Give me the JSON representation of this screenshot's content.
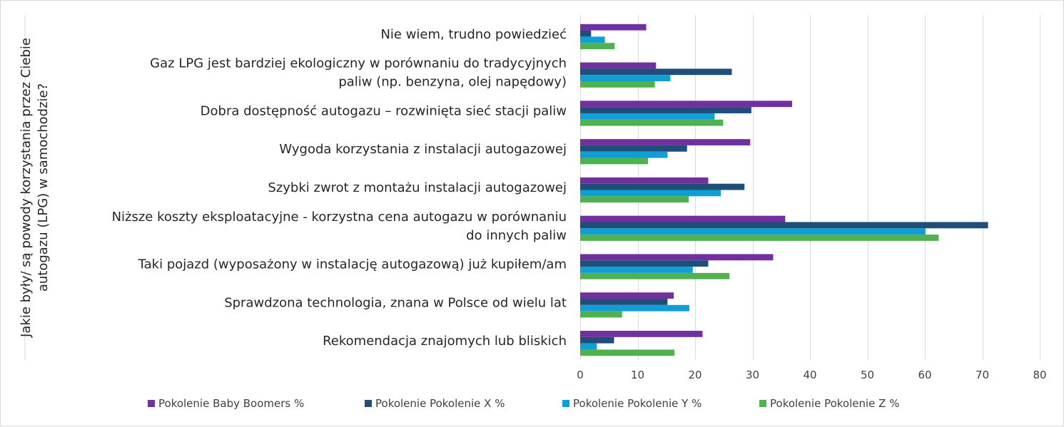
{
  "chart_data": {
    "type": "bar",
    "orientation": "horizontal",
    "ylabel": "Jakie były/ są powody korzystania przez Ciebie autogazu (LPG) w samochodzie?",
    "ylabel_lines": [
      "Jakie były/ są powody korzystania przez Ciebie",
      "autogazu (LPG) w samochodzie?"
    ],
    "xlim": [
      0,
      80
    ],
    "x_ticks": [
      0,
      10,
      20,
      30,
      40,
      50,
      60,
      70,
      80
    ],
    "grid": "vertical",
    "legend_position": "bottom",
    "categories": [
      "Nie wiem, trudno powiedzieć",
      "Gaz LPG jest bardziej ekologiczny w porównaniu do tradycyjnych paliw (np. benzyna, olej napędowy)",
      "Dobra dostępność autogazu – rozwinięta sieć stacji paliw",
      "Wygoda korzystania z instalacji autogazowej",
      "Szybki zwrot z montażu instalacji autogazowej",
      "Niższe koszty eksploatacyjne - korzystna cena autogazu w porównaniu do innych paliw",
      "Taki pojazd (wyposażony w instalację autogazową) już kupiłem/am",
      "Sprawdzona technologia, znana w Polsce od wielu lat",
      "Rekomendacja znajomych lub bliskich"
    ],
    "category_lines": [
      [
        "Nie wiem, trudno powiedzieć"
      ],
      [
        "Gaz LPG jest bardziej ekologiczny w porównaniu do tradycyjnych",
        "paliw (np. benzyna, olej napędowy)"
      ],
      [
        "Dobra dostępność autogazu – rozwinięta sieć stacji paliw"
      ],
      [
        "Wygoda korzystania z instalacji autogazowej"
      ],
      [
        "Szybki zwrot z montażu instalacji autogazowej"
      ],
      [
        "Niższe koszty eksploatacyjne - korzystna cena autogazu w porównaniu",
        "do innych paliw"
      ],
      [
        "Taki pojazd (wyposażony w instalację autogazową) już kupiłem/am"
      ],
      [
        "Sprawdzona technologia, znana w Polsce od wielu lat"
      ],
      [
        "Rekomendacja znajomych lub bliskich"
      ]
    ],
    "series": [
      {
        "name": "Pokolenie Baby Boomers %",
        "color": "#7030a0",
        "values": [
          11.5,
          13.2,
          36.9,
          29.6,
          22.3,
          35.7,
          33.6,
          16.3,
          21.3
        ]
      },
      {
        "name": "Pokolenie Pokolenie X %",
        "color": "#1f4e79",
        "values": [
          1.9,
          26.4,
          29.8,
          18.6,
          28.6,
          71.0,
          22.3,
          15.2,
          5.9
        ]
      },
      {
        "name": "Pokolenie Pokolenie Y %",
        "color": "#0f9ed5",
        "values": [
          4.3,
          15.7,
          23.4,
          15.2,
          24.5,
          60.1,
          19.6,
          19.0,
          2.9
        ]
      },
      {
        "name": "Pokolenie Pokolenie Z %",
        "color": "#4fb24f",
        "values": [
          6.0,
          13.0,
          24.9,
          11.8,
          18.9,
          62.4,
          26.0,
          7.3,
          16.4
        ]
      }
    ]
  }
}
